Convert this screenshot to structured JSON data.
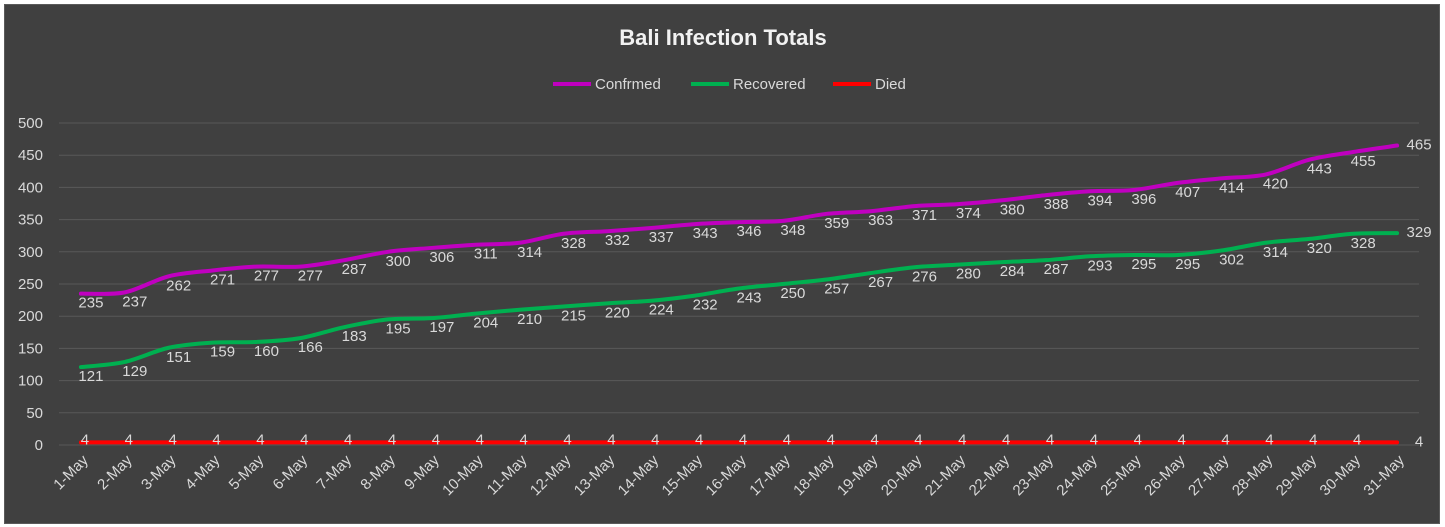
{
  "chart_data": {
    "type": "line",
    "title": "Bali Infection Totals",
    "xlabel": "",
    "ylabel": "",
    "ylim": [
      0,
      500
    ],
    "yticks": [
      0,
      50,
      100,
      150,
      200,
      250,
      300,
      350,
      400,
      450,
      500
    ],
    "grid": true,
    "legend_position": "top",
    "categories": [
      "1-May",
      "2-May",
      "3-May",
      "4-May",
      "5-May",
      "6-May",
      "7-May",
      "8-May",
      "9-May",
      "10-May",
      "11-May",
      "12-May",
      "13-May",
      "14-May",
      "15-May",
      "16-May",
      "17-May",
      "18-May",
      "19-May",
      "20-May",
      "21-May",
      "22-May",
      "23-May",
      "24-May",
      "25-May",
      "26-May",
      "27-May",
      "28-May",
      "29-May",
      "30-May",
      "31-May"
    ],
    "series": [
      {
        "name": "Confrmed",
        "color": "#c000c0",
        "values": [
          235,
          237,
          262,
          271,
          277,
          277,
          287,
          300,
          306,
          311,
          314,
          328,
          332,
          337,
          343,
          346,
          348,
          359,
          363,
          371,
          374,
          380,
          388,
          394,
          396,
          407,
          414,
          420,
          443,
          455,
          465
        ]
      },
      {
        "name": "Recovered",
        "color": "#00b050",
        "values": [
          121,
          129,
          151,
          159,
          160,
          166,
          183,
          195,
          197,
          204,
          210,
          215,
          220,
          224,
          232,
          243,
          250,
          257,
          267,
          276,
          280,
          284,
          287,
          293,
          295,
          295,
          302,
          314,
          320,
          328,
          329
        ]
      },
      {
        "name": "Died",
        "color": "#ff0000",
        "values": [
          4,
          4,
          4,
          4,
          4,
          4,
          4,
          4,
          4,
          4,
          4,
          4,
          4,
          4,
          4,
          4,
          4,
          4,
          4,
          4,
          4,
          4,
          4,
          4,
          4,
          4,
          4,
          4,
          4,
          4,
          4
        ]
      }
    ]
  },
  "colors": {
    "background": "#404040",
    "gridline": "#595959",
    "text": "#d9d9d9"
  }
}
